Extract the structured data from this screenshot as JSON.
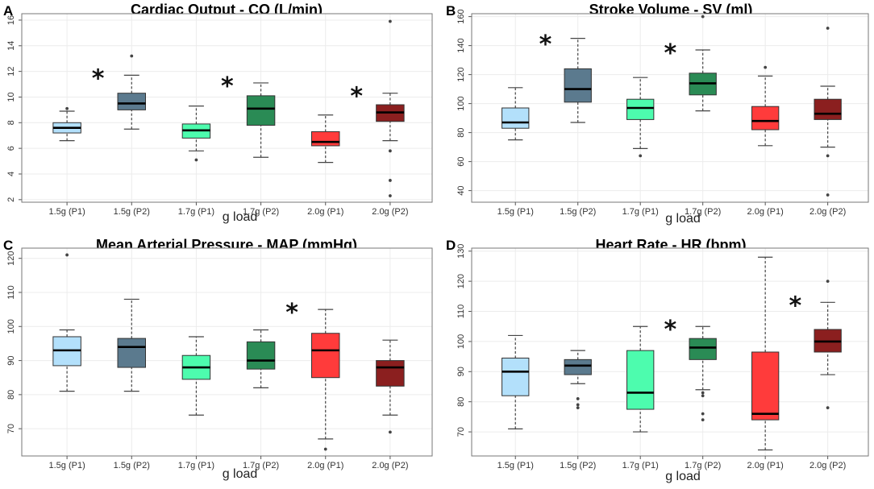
{
  "chart_data": [
    {
      "type": "box",
      "panel": "A",
      "title": "Cardiac Output - CO (L/min)",
      "xlabel": "g load",
      "ylabel": "",
      "ylim": [
        1.8,
        16.5
      ],
      "yticks": [
        2,
        4,
        6,
        8,
        10,
        12,
        14,
        16
      ],
      "categories": [
        "1.5g (P1)",
        "1.5g (P2)",
        "1.7g (P1)",
        "1.7g (P2)",
        "2.0g (P1)",
        "2.0g (P2)"
      ],
      "colors": [
        "#b3e0fb",
        "#5b7a8e",
        "#4dfcae",
        "#2a8b55",
        "#ff3b3b",
        "#8b1f1f"
      ],
      "boxes": [
        {
          "min": 6.6,
          "q1": 7.2,
          "median": 7.6,
          "q3": 8.0,
          "max": 8.9,
          "outliers": [
            9.1
          ]
        },
        {
          "min": 7.5,
          "q1": 9.0,
          "median": 9.5,
          "q3": 10.3,
          "max": 11.7,
          "outliers": [
            13.2
          ]
        },
        {
          "min": 5.8,
          "q1": 6.8,
          "median": 7.4,
          "q3": 7.9,
          "max": 9.3,
          "outliers": [
            5.1
          ]
        },
        {
          "min": 5.3,
          "q1": 7.8,
          "median": 9.1,
          "q3": 10.1,
          "max": 11.1,
          "outliers": []
        },
        {
          "min": 4.9,
          "q1": 6.2,
          "median": 6.5,
          "q3": 7.3,
          "max": 8.6,
          "outliers": []
        },
        {
          "min": 6.6,
          "q1": 8.1,
          "median": 8.8,
          "q3": 9.4,
          "max": 10.3,
          "outliers": [
            5.8,
            3.5,
            2.3,
            15.9
          ]
        }
      ],
      "significance": [
        "",
        "*",
        "",
        "*",
        "",
        "*"
      ]
    },
    {
      "type": "box",
      "panel": "B",
      "title": "Stroke Volume - SV (ml)",
      "xlabel": "g load",
      "ylabel": "",
      "ylim": [
        32,
        162
      ],
      "yticks": [
        40,
        60,
        80,
        100,
        120,
        140,
        160
      ],
      "categories": [
        "1.5g (P1)",
        "1.5g (P2)",
        "1.7g (P1)",
        "1.7g (P2)",
        "2.0g (P1)",
        "2.0g (P2)"
      ],
      "colors": [
        "#b3e0fb",
        "#5b7a8e",
        "#4dfcae",
        "#2a8b55",
        "#ff3b3b",
        "#8b1f1f"
      ],
      "boxes": [
        {
          "min": 75,
          "q1": 83,
          "median": 87,
          "q3": 97,
          "max": 111,
          "outliers": []
        },
        {
          "min": 87,
          "q1": 101,
          "median": 110,
          "q3": 124,
          "max": 145,
          "outliers": []
        },
        {
          "min": 69,
          "q1": 89,
          "median": 97,
          "q3": 103,
          "max": 118,
          "outliers": [
            64
          ]
        },
        {
          "min": 95,
          "q1": 106,
          "median": 114,
          "q3": 121,
          "max": 137,
          "outliers": [
            160
          ]
        },
        {
          "min": 71,
          "q1": 82,
          "median": 88,
          "q3": 98,
          "max": 119,
          "outliers": [
            125
          ]
        },
        {
          "min": 70,
          "q1": 89,
          "median": 93,
          "q3": 103,
          "max": 112,
          "outliers": [
            64,
            37,
            152
          ]
        }
      ],
      "significance": [
        "",
        "*",
        "",
        "*",
        "",
        ""
      ]
    },
    {
      "type": "box",
      "panel": "C",
      "title": "Mean Arterial Pressure - MAP (mmHg)",
      "xlabel": "g load",
      "ylabel": "",
      "ylim": [
        62,
        123
      ],
      "yticks": [
        70,
        80,
        90,
        100,
        110,
        120
      ],
      "categories": [
        "1.5g (P1)",
        "1.5g (P2)",
        "1.7g (P1)",
        "1.7g (P2)",
        "2.0g (P1)",
        "2.0g (P2)"
      ],
      "colors": [
        "#b3e0fb",
        "#5b7a8e",
        "#4dfcae",
        "#2a8b55",
        "#ff3b3b",
        "#8b1f1f"
      ],
      "boxes": [
        {
          "min": 81,
          "q1": 88.5,
          "median": 93,
          "q3": 97,
          "max": 99,
          "outliers": [
            121
          ]
        },
        {
          "min": 81,
          "q1": 88,
          "median": 94,
          "q3": 96.5,
          "max": 108,
          "outliers": []
        },
        {
          "min": 74,
          "q1": 84.5,
          "median": 88,
          "q3": 91.5,
          "max": 97,
          "outliers": []
        },
        {
          "min": 82,
          "q1": 87.5,
          "median": 90,
          "q3": 95.5,
          "max": 99,
          "outliers": []
        },
        {
          "min": 67,
          "q1": 85,
          "median": 93,
          "q3": 98,
          "max": 105,
          "outliers": [
            64
          ]
        },
        {
          "min": 74,
          "q1": 82.5,
          "median": 88,
          "q3": 90,
          "max": 96,
          "outliers": [
            69
          ]
        }
      ],
      "significance": [
        "",
        "",
        "",
        "",
        "*",
        ""
      ]
    },
    {
      "type": "box",
      "panel": "D",
      "title": "Heart Rate - HR (bpm)",
      "xlabel": "g load",
      "ylabel": "",
      "ylim": [
        62,
        131
      ],
      "yticks": [
        70,
        80,
        90,
        100,
        110,
        120,
        130
      ],
      "categories": [
        "1.5g (P1)",
        "1.5g (P2)",
        "1.7g (P1)",
        "1.7g (P2)",
        "2.0g (P1)",
        "2.0g (P2)"
      ],
      "colors": [
        "#b3e0fb",
        "#5b7a8e",
        "#4dfcae",
        "#2a8b55",
        "#ff3b3b",
        "#8b1f1f"
      ],
      "boxes": [
        {
          "min": 71,
          "q1": 82,
          "median": 90,
          "q3": 94.5,
          "max": 102,
          "outliers": []
        },
        {
          "min": 86,
          "q1": 89,
          "median": 92,
          "q3": 94,
          "max": 97,
          "outliers": [
            81,
            79,
            78
          ]
        },
        {
          "min": 70,
          "q1": 77.5,
          "median": 83,
          "q3": 97,
          "max": 105,
          "outliers": []
        },
        {
          "min": 84,
          "q1": 94,
          "median": 98,
          "q3": 101,
          "max": 105,
          "outliers": [
            83,
            82,
            76,
            74
          ]
        },
        {
          "min": 64,
          "q1": 74,
          "median": 76,
          "q3": 96.5,
          "max": 128,
          "outliers": []
        },
        {
          "min": 89,
          "q1": 96.5,
          "median": 100,
          "q3": 104,
          "max": 113,
          "outliers": [
            120,
            78
          ]
        }
      ],
      "significance": [
        "",
        "",
        "",
        "*",
        "",
        "*"
      ]
    }
  ]
}
